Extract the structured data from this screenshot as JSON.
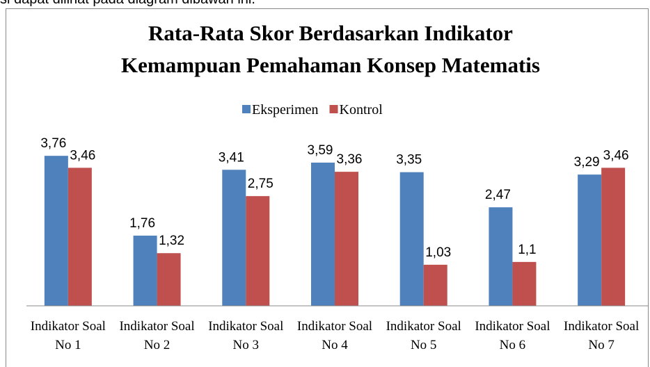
{
  "page_text": "si dapat dilihat pada diagram dibawah ini.",
  "chart_data": {
    "type": "bar",
    "title": [
      "Rata-Rata Skor Berdasarkan Indikator",
      "Kemampuan Pemahaman Konsep Matematis"
    ],
    "categories": [
      "Indikator Soal No 1",
      "Indikator Soal No 2",
      "Indikator Soal No 3",
      "Indikator Soal No 4",
      "Indikator Soal No 5",
      "Indikator Soal No 6",
      "Indikator Soal No 7"
    ],
    "series": [
      {
        "name": "Eksperimen",
        "color": "#4f81bd",
        "values": [
          3.76,
          1.76,
          3.41,
          3.59,
          3.35,
          2.47,
          3.29
        ],
        "value_labels": [
          "3,76",
          "1,76",
          "3,41",
          "3,59",
          "3,35",
          "2,47",
          "3,29"
        ]
      },
      {
        "name": "Kontrol",
        "color": "#c0504d",
        "values": [
          3.46,
          1.32,
          2.75,
          3.36,
          1.03,
          1.1,
          3.46
        ],
        "value_labels": [
          "3,46",
          "1,32",
          "2,75",
          "3,36",
          "1,03",
          "1,1",
          "3,46"
        ]
      }
    ],
    "legend": "top"
  }
}
